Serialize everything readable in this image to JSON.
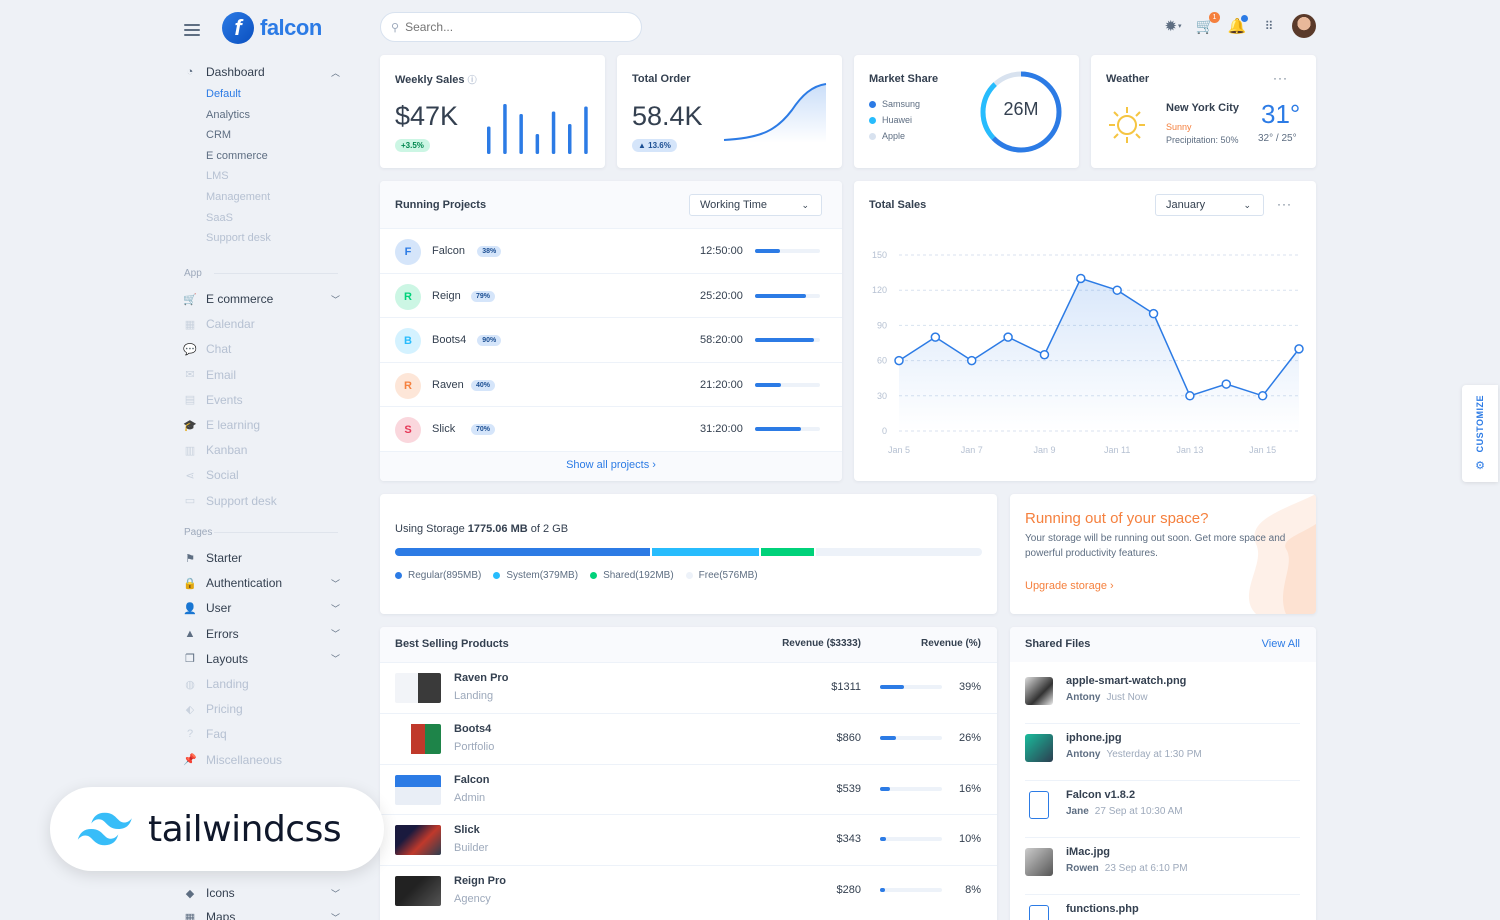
{
  "brand": {
    "name": "falcon",
    "mark": "f"
  },
  "sidebar": {
    "dashboard": {
      "label": "Dashboard",
      "subitems": [
        "Default",
        "Analytics",
        "CRM",
        "E commerce",
        "LMS",
        "Management",
        "SaaS",
        "Support desk"
      ]
    },
    "app_label": "App",
    "app_items": [
      {
        "label": "E commerce",
        "icon": "cart-icon",
        "muted": false,
        "chevron": true
      },
      {
        "label": "Calendar",
        "icon": "calendar-icon",
        "muted": true
      },
      {
        "label": "Chat",
        "icon": "chat-icon",
        "muted": true
      },
      {
        "label": "Email",
        "icon": "email-icon",
        "muted": true
      },
      {
        "label": "Events",
        "icon": "events-icon",
        "muted": true
      },
      {
        "label": "E learning",
        "icon": "graduation-icon",
        "muted": true
      },
      {
        "label": "Kanban",
        "icon": "kanban-icon",
        "muted": true
      },
      {
        "label": "Social",
        "icon": "share-icon",
        "muted": true
      },
      {
        "label": "Support desk",
        "icon": "ticket-icon",
        "muted": true
      }
    ],
    "pages_label": "Pages",
    "page_items": [
      {
        "label": "Starter",
        "icon": "flag-icon",
        "muted": false,
        "chevron": false
      },
      {
        "label": "Authentication",
        "icon": "lock-icon",
        "muted": false,
        "chevron": true
      },
      {
        "label": "User",
        "icon": "user-icon",
        "muted": false,
        "chevron": true
      },
      {
        "label": "Errors",
        "icon": "warning-icon",
        "muted": false,
        "chevron": true
      },
      {
        "label": "Layouts",
        "icon": "window-icon",
        "muted": false,
        "chevron": true
      },
      {
        "label": "Landing",
        "icon": "globe-icon",
        "muted": true
      },
      {
        "label": "Pricing",
        "icon": "tags-icon",
        "muted": true
      },
      {
        "label": "Faq",
        "icon": "question-icon",
        "muted": true
      },
      {
        "label": "Miscellaneous",
        "icon": "thumbtack-icon",
        "muted": true
      }
    ],
    "bottom_items": [
      {
        "label": "Icons",
        "icon": "shapes-icon",
        "chevron": true
      },
      {
        "label": "Maps",
        "icon": "map-icon",
        "chevron": true
      }
    ]
  },
  "search": {
    "placeholder": "Search..."
  },
  "topbar": {
    "cart_badge": "1"
  },
  "weekly_sales": {
    "title": "Weekly Sales",
    "value": "$47K",
    "change": "+3.5%",
    "bars": [
      55,
      100,
      80,
      40,
      85,
      60,
      95
    ]
  },
  "total_order": {
    "title": "Total Order",
    "value": "58.4K",
    "change": "▲ 13.6%"
  },
  "market_share": {
    "title": "Market Share",
    "center": "26M",
    "items": [
      {
        "name": "Samsung",
        "color": "#2c7be5"
      },
      {
        "name": "Huawei",
        "color": "#27bcfd"
      },
      {
        "name": "Apple",
        "color": "#d8e2ef"
      }
    ]
  },
  "weather": {
    "title": "Weather",
    "city": "New York City",
    "condition": "Sunny",
    "precipitation": "Precipitation: 50%",
    "temp": "31°",
    "range": "32° / 25°"
  },
  "running_projects": {
    "title": "Running Projects",
    "select": "Working Time",
    "footer": "Show all projects ›",
    "rows": [
      {
        "initial": "F",
        "name": "Falcon",
        "pct": "38%",
        "time": "12:50:00",
        "progress": 0.38,
        "bg": "#d5e5fa",
        "fg": "#2c7be5"
      },
      {
        "initial": "R",
        "name": "Reign",
        "pct": "79%",
        "time": "25:20:00",
        "progress": 0.79,
        "bg": "#ccf6e4",
        "fg": "#00d27a"
      },
      {
        "initial": "B",
        "name": "Boots4",
        "pct": "90%",
        "time": "58:20:00",
        "progress": 0.9,
        "bg": "#d4f2ff",
        "fg": "#27bcfd"
      },
      {
        "initial": "R",
        "name": "Raven",
        "pct": "40%",
        "time": "21:20:00",
        "progress": 0.4,
        "bg": "#fde6d8",
        "fg": "#f5803e"
      },
      {
        "initial": "S",
        "name": "Slick",
        "pct": "70%",
        "time": "31:20:00",
        "progress": 0.7,
        "bg": "#fad7dd",
        "fg": "#e63757"
      }
    ]
  },
  "total_sales": {
    "title": "Total Sales",
    "select": "January"
  },
  "chart_data": {
    "type": "line",
    "x": [
      "Jan 5",
      "Jan 6",
      "Jan 7",
      "Jan 8",
      "Jan 9",
      "Jan 10",
      "Jan 11",
      "Jan 12",
      "Jan 13",
      "Jan 14",
      "Jan 15",
      "Jan 16"
    ],
    "x_tick_labels": [
      "Jan 5",
      "Jan 7",
      "Jan 9",
      "Jan 11",
      "Jan 13",
      "Jan 15"
    ],
    "values": [
      60,
      80,
      60,
      80,
      65,
      130,
      120,
      100,
      30,
      40,
      30,
      70
    ],
    "ylim": [
      0,
      150
    ],
    "yticks": [
      0,
      30,
      60,
      90,
      120,
      150
    ],
    "grid": true,
    "color": "#2c7be5"
  },
  "storage": {
    "label": "Using Storage",
    "used": "1775.06 MB",
    "total": "of 2 GB",
    "segments": [
      {
        "name": "Regular(895MB)",
        "value": 895,
        "color": "#2c7be5"
      },
      {
        "name": "System(379MB)",
        "value": 379,
        "color": "#27bcfd"
      },
      {
        "name": "Shared(192MB)",
        "value": 192,
        "color": "#00d27a"
      },
      {
        "name": "Free(576MB)",
        "value": 576,
        "color": "#edf2f9"
      }
    ]
  },
  "space": {
    "title": "Running out of your space?",
    "body": "Your storage will be running out soon. Get more space and powerful productivity features.",
    "link": "Upgrade storage ›"
  },
  "products": {
    "title": "Best Selling Products",
    "col_revenue": "Revenue ($3333)",
    "col_pct": "Revenue (%)",
    "rows": [
      {
        "name": "Raven Pro",
        "sub": "Landing",
        "revenue": "$1311",
        "pct": "39%",
        "progress": 0.39
      },
      {
        "name": "Boots4",
        "sub": "Portfolio",
        "revenue": "$860",
        "pct": "26%",
        "progress": 0.26
      },
      {
        "name": "Falcon",
        "sub": "Admin",
        "revenue": "$539",
        "pct": "16%",
        "progress": 0.16
      },
      {
        "name": "Slick",
        "sub": "Builder",
        "revenue": "$343",
        "pct": "10%",
        "progress": 0.1
      },
      {
        "name": "Reign Pro",
        "sub": "Agency",
        "revenue": "$280",
        "pct": "8%",
        "progress": 0.08
      }
    ]
  },
  "shared_files": {
    "title": "Shared Files",
    "view_all": "View All",
    "rows": [
      {
        "name": "apple-smart-watch.png",
        "user": "Antony",
        "time": "Just Now"
      },
      {
        "name": "iphone.jpg",
        "user": "Antony",
        "time": "Yesterday at 1:30 PM"
      },
      {
        "name": "Falcon v1.8.2",
        "user": "Jane",
        "time": "27 Sep at 10:30 AM"
      },
      {
        "name": "iMac.jpg",
        "user": "Rowen",
        "time": "23 Sep at 6:10 PM"
      },
      {
        "name": "functions.php",
        "user": "",
        "time": ""
      }
    ]
  },
  "overlay": {
    "text": "tailwindcss"
  },
  "customize": {
    "label": "CUSTOMIZE"
  }
}
